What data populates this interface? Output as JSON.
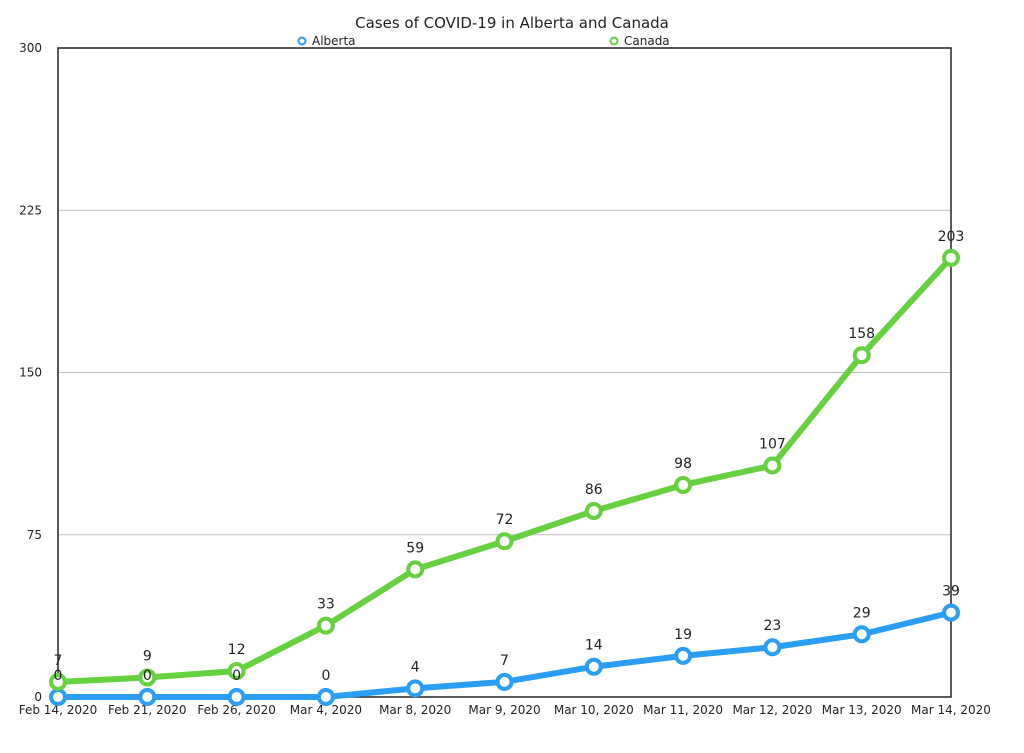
{
  "chart_data": {
    "type": "line",
    "title": "Cases of COVID-19 in Alberta and Canada",
    "xlabel": "",
    "ylabel": "",
    "categories": [
      "Feb 14, 2020",
      "Feb 21, 2020",
      "Feb 26, 2020",
      "Mar 4, 2020",
      "Mar 8, 2020",
      "Mar 9, 2020",
      "Mar 10, 2020",
      "Mar 11, 2020",
      "Mar 12, 2020",
      "Mar 13, 2020",
      "Mar 14, 2020"
    ],
    "ylim": [
      0,
      300
    ],
    "yticks": [
      0,
      75,
      150,
      225,
      300
    ],
    "grid": true,
    "legend_position": "top",
    "data_labels": true,
    "series": [
      {
        "name": "Alberta",
        "color": "#2a9df4",
        "values": [
          0,
          0,
          0,
          0,
          4,
          7,
          14,
          19,
          23,
          29,
          39
        ]
      },
      {
        "name": "Canada",
        "color": "#66d13e",
        "values": [
          7,
          9,
          12,
          33,
          59,
          72,
          86,
          98,
          107,
          158,
          203
        ]
      }
    ]
  }
}
